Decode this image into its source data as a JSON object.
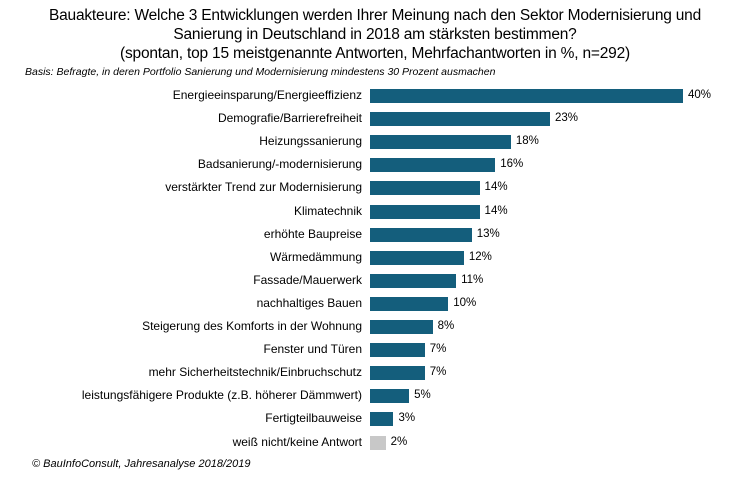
{
  "title_lines": [
    "Bauakteure: Welche 3 Entwicklungen  werden Ihrer Meinung nach den Sektor Modernisierung  und",
    "Sanierung in Deutschland in 2018 am stärksten bestimmen?",
    "(spontan, top 15 meistgenannte  Antworten,  Mehrfachantworten  in %, n=292)"
  ],
  "basis": "Basis: Befragte, in deren Portfolio Sanierung und Modernisierung mindestens 30 Prozent ausmachen",
  "source": "© BauInfoConsult, Jahresanalyse 2018/2019",
  "colors": {
    "primary": "#145e7c",
    "other": "#c8c8c8"
  },
  "chart_data": {
    "type": "bar",
    "orientation": "horizontal",
    "title": "Bauakteure: Welche 3 Entwicklungen werden Ihrer Meinung nach den Sektor Modernisierung und Sanierung in Deutschland in 2018 am stärksten bestimmen?",
    "xlabel": "",
    "ylabel": "",
    "xlim": [
      0,
      40
    ],
    "unit": "%",
    "categories": [
      "Energieeinsparung/Energieeffizienz",
      "Demografie/Barrierefreiheit",
      "Heizungssanierung",
      "Badsanierung/-modernisierung",
      "verstärkter Trend zur Modernisierung",
      "Klimatechnik",
      "erhöhte Baupreise",
      "Wärmedämmung",
      "Fassade/Mauerwerk",
      "nachhaltiges Bauen",
      "Steigerung des Komforts in der Wohnung",
      "Fenster und Türen",
      "mehr Sicherheitstechnik/Einbruchschutz",
      "leistungsfähigere Produkte (z.B. höherer Dämmwert)",
      "Fertigteilbauweise",
      "weiß nicht/keine Antwort"
    ],
    "values": [
      40,
      23,
      18,
      16,
      14,
      14,
      13,
      12,
      11,
      10,
      8,
      7,
      7,
      5,
      3,
      2
    ],
    "labels": [
      "40%",
      "23%",
      "18%",
      "16%",
      "14%",
      "14%",
      "13%",
      "12%",
      "11%",
      "10%",
      "8%",
      "7%",
      "7%",
      "5%",
      "3%",
      "2%"
    ]
  }
}
